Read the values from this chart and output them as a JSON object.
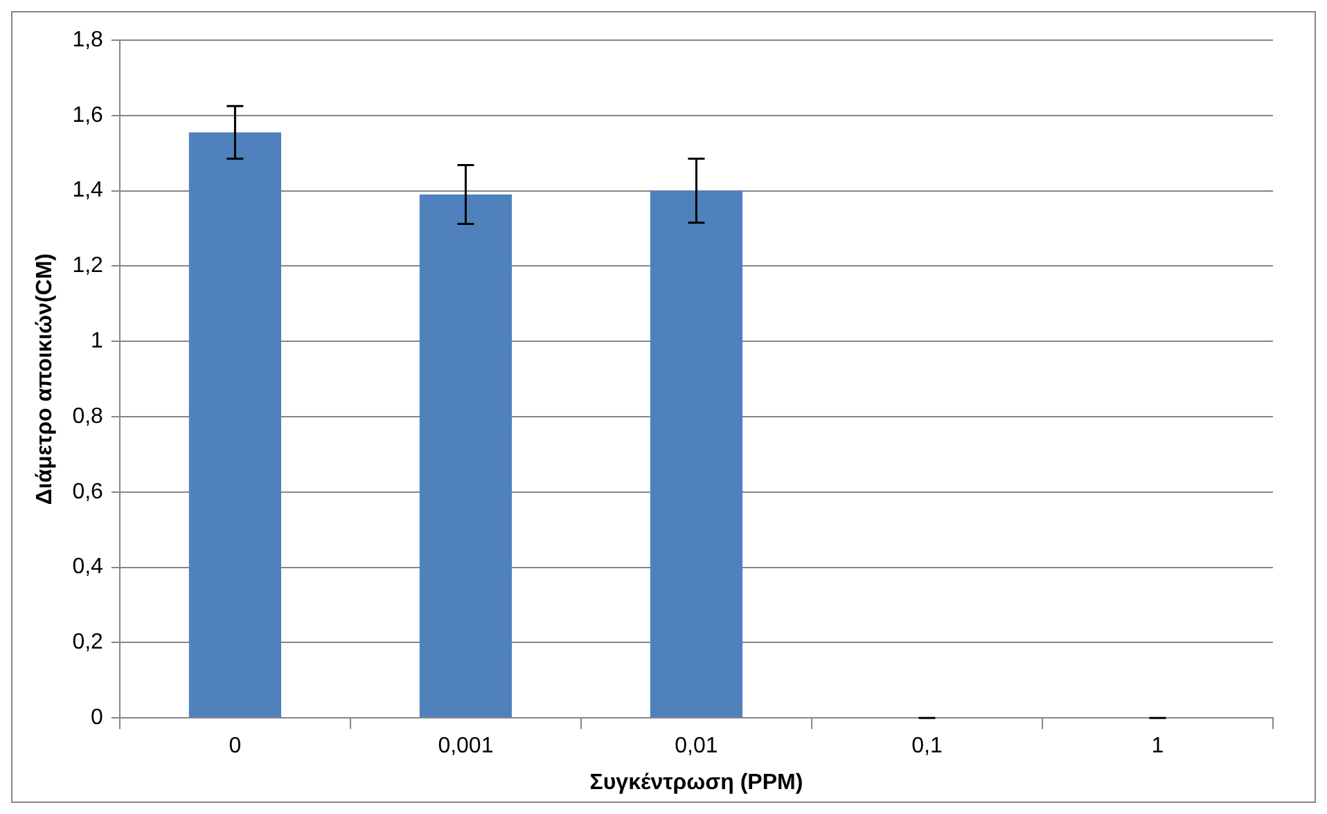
{
  "chart_data": {
    "type": "bar",
    "xlabel": "Συγκέντρωση (PPM)",
    "ylabel": "Διάμετρο αποικιών(CM)",
    "categories": [
      "0",
      "0,001",
      "0,01",
      "0,1",
      "1"
    ],
    "values": [
      1.555,
      1.39,
      1.4,
      0,
      0
    ],
    "errors": [
      0.07,
      0.078,
      0.085,
      0,
      0
    ],
    "color": "#4f81bd",
    "ylim": [
      0,
      1.8
    ],
    "yticks": [
      {
        "value": 0,
        "label": "0"
      },
      {
        "value": 0.2,
        "label": "0,2"
      },
      {
        "value": 0.4,
        "label": "0,4"
      },
      {
        "value": 0.6,
        "label": "0,6"
      },
      {
        "value": 0.8,
        "label": "0,8"
      },
      {
        "value": 1,
        "label": "1"
      },
      {
        "value": 1.2,
        "label": "1,2"
      },
      {
        "value": 1.4,
        "label": "1,4"
      },
      {
        "value": 1.6,
        "label": "1,6"
      },
      {
        "value": 1.8,
        "label": "1,8"
      }
    ],
    "grid": "y",
    "legend": false
  }
}
